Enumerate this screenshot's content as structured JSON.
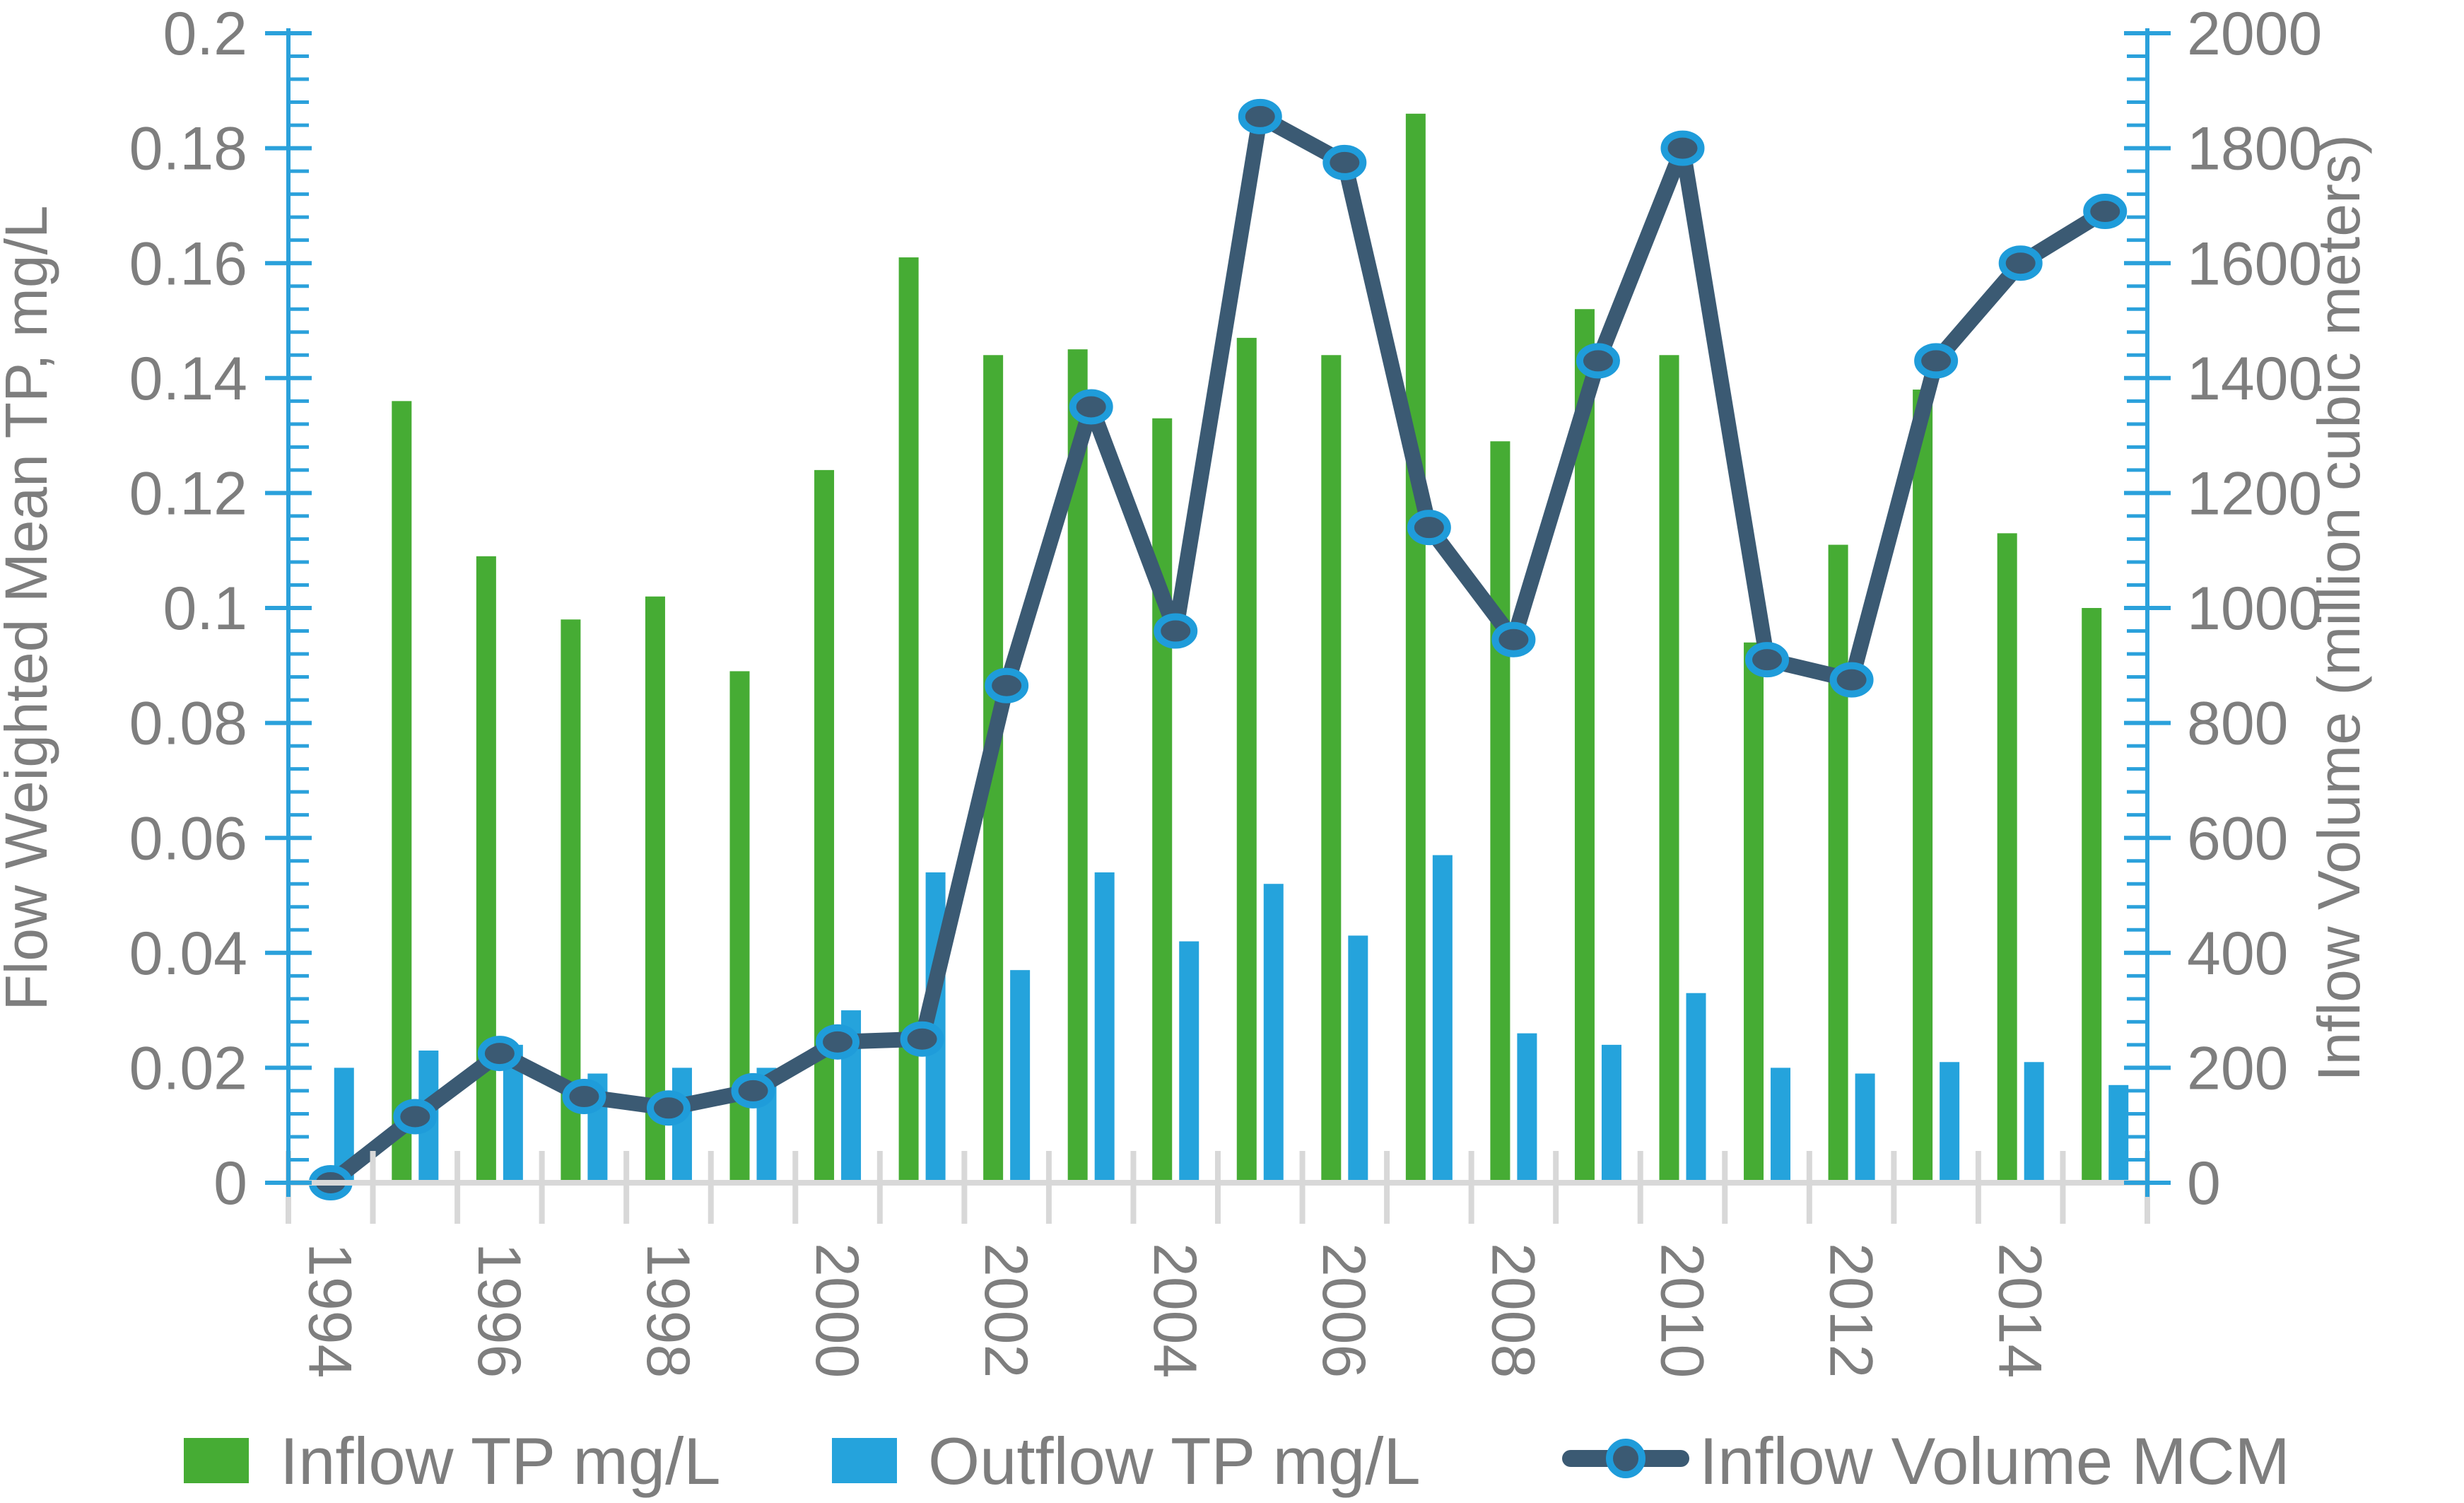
{
  "chart_data": {
    "type": "bar",
    "title": "",
    "x": [
      1994,
      1995,
      1996,
      1997,
      1998,
      1999,
      2000,
      2001,
      2002,
      2003,
      2004,
      2005,
      2006,
      2007,
      2008,
      2009,
      2010,
      2011,
      2012,
      2013,
      2014,
      2015
    ],
    "x_axis_tick_labels": [
      "1994",
      "1996",
      "1998",
      "2000",
      "2002",
      "2004",
      "2006",
      "2008",
      "2010",
      "2012",
      "2014"
    ],
    "series": [
      {
        "name": "Inflow TP mg/L",
        "chart": "column",
        "axis": "left",
        "color": "#46AC34",
        "values": [
          null,
          0.136,
          0.109,
          0.098,
          0.102,
          0.089,
          0.124,
          0.161,
          0.144,
          0.145,
          0.133,
          0.147,
          0.144,
          0.186,
          0.129,
          0.152,
          0.144,
          0.094,
          0.111,
          0.138,
          0.113,
          0.1
        ]
      },
      {
        "name": "Outflow TP mg/L",
        "chart": "column",
        "axis": "left",
        "color": "#25A3DC",
        "values": [
          0.02,
          0.023,
          0.024,
          0.019,
          0.02,
          0.02,
          0.03,
          0.054,
          0.037,
          0.054,
          0.042,
          0.052,
          0.043,
          0.057,
          0.026,
          0.024,
          0.033,
          0.02,
          0.019,
          0.021,
          0.021,
          0.017
        ]
      },
      {
        "name": "Inflow Volume MCM",
        "chart": "line",
        "axis": "right",
        "color": "#3B5A73",
        "marker_ring_color": "#1F9CDA",
        "values": [
          0,
          115,
          225,
          150,
          130,
          160,
          245,
          250,
          865,
          1350,
          960,
          1855,
          1775,
          1140,
          945,
          1430,
          1800,
          910,
          875,
          1430,
          1600,
          1690
        ]
      }
    ],
    "left_axis": {
      "label": "Flow Weighted Mean TP, mg/L",
      "min": 0,
      "max": 0.2,
      "major_step": 0.02,
      "minor_step": 0.004,
      "tick_labels": [
        "0",
        "0.02",
        "0.04",
        "0.06",
        "0.08",
        "0.1",
        "0.12",
        "0.14",
        "0.16",
        "0.18",
        "0.2"
      ]
    },
    "right_axis": {
      "label": "Inflow Volume (million cubic meters)",
      "min": 0,
      "max": 2000,
      "major_step": 200,
      "minor_step": 40,
      "tick_labels": [
        "0",
        "200",
        "400",
        "600",
        "800",
        "1000",
        "1200",
        "1400",
        "1600",
        "1800",
        "2000"
      ]
    },
    "legend": {
      "position": "bottom",
      "items": [
        {
          "label": "Inflow TP mg/L",
          "swatch": "square",
          "color": "#46AC34"
        },
        {
          "label": "Outflow TP mg/L",
          "swatch": "square",
          "color": "#25A3DC"
        },
        {
          "label": "Inflow Volume MCM",
          "swatch": "line-marker",
          "color": "#3B5A73"
        }
      ]
    },
    "grid": "off"
  },
  "colors": {
    "axis_blue": "#2BA1DB",
    "category_axis_gray": "#D8D8D8",
    "text_gray": "#7E7E7E",
    "background": "#FFFFFF"
  }
}
